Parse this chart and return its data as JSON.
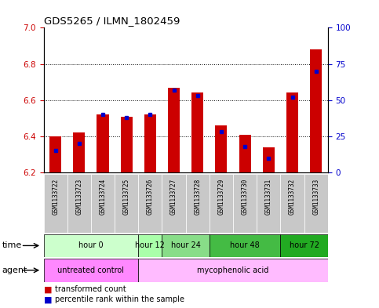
{
  "title": "GDS5265 / ILMN_1802459",
  "samples": [
    "GSM1133722",
    "GSM1133723",
    "GSM1133724",
    "GSM1133725",
    "GSM1133726",
    "GSM1133727",
    "GSM1133728",
    "GSM1133729",
    "GSM1133730",
    "GSM1133731",
    "GSM1133732",
    "GSM1133733"
  ],
  "transformed_counts": [
    6.4,
    6.42,
    6.52,
    6.51,
    6.52,
    6.67,
    6.64,
    6.46,
    6.41,
    6.34,
    6.64,
    6.88
  ],
  "percentile_ranks": [
    15,
    20,
    40,
    38,
    40,
    57,
    53,
    28,
    18,
    10,
    52,
    70
  ],
  "y_min": 6.2,
  "y_max": 7.0,
  "y_ticks": [
    6.2,
    6.4,
    6.6,
    6.8,
    7.0
  ],
  "y2_ticks": [
    0,
    25,
    50,
    75,
    100
  ],
  "bar_color": "#cc0000",
  "blue_color": "#0000cc",
  "time_groups": [
    {
      "label": "hour 0",
      "start": 0,
      "end": 3,
      "color": "#ccffcc"
    },
    {
      "label": "hour 12",
      "start": 4,
      "end": 4,
      "color": "#aaffaa"
    },
    {
      "label": "hour 24",
      "start": 5,
      "end": 6,
      "color": "#88dd88"
    },
    {
      "label": "hour 48",
      "start": 7,
      "end": 9,
      "color": "#44bb44"
    },
    {
      "label": "hour 72",
      "start": 10,
      "end": 11,
      "color": "#22aa22"
    }
  ],
  "agent_groups": [
    {
      "label": "untreated control",
      "start": 0,
      "end": 3,
      "color": "#ff88ff"
    },
    {
      "label": "mycophenolic acid",
      "start": 4,
      "end": 11,
      "color": "#ffbbff"
    }
  ],
  "tick_label_color_left": "#cc0000",
  "tick_label_color_right": "#0000cc",
  "bar_width": 0.5,
  "sample_box_color": "#c8c8c8"
}
